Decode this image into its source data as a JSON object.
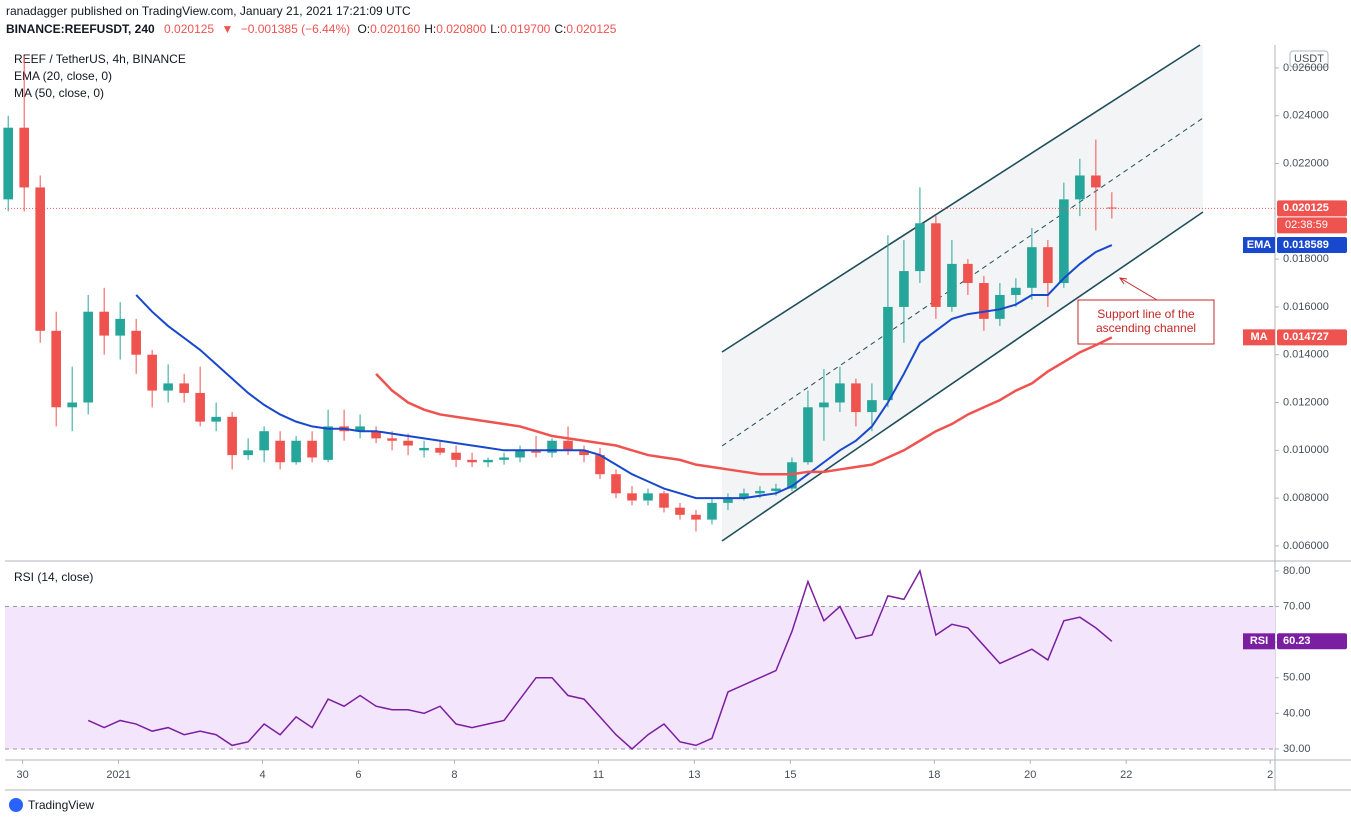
{
  "header": {
    "publisher": "ranadagger published on TradingView.com, January 21, 2021 17:21:09 UTC",
    "symbol": "BINANCE:REEFUSDT, 240",
    "last": "0.020125",
    "arrow": "▼",
    "change": "−0.001385 (−6.44%)",
    "ohlc": [
      {
        "label": "O:",
        "value": "0.020160"
      },
      {
        "label": "H:",
        "value": "0.020800"
      },
      {
        "label": "L:",
        "value": "0.019700"
      },
      {
        "label": "C:",
        "value": "0.020125"
      }
    ],
    "currency": "USDT",
    "timer": "02:38:59",
    "brand": "TradingView"
  },
  "chart_data": [
    {
      "type": "candlestick",
      "title": "REEF / TetherUS, 4h, BINANCE",
      "up_color": "#26a69a",
      "down_color": "#ef5350",
      "open": [
        0.0205,
        0.0235,
        0.021,
        0.015,
        0.0118,
        0.012,
        0.0158,
        0.0148,
        0.015,
        0.014,
        0.0125,
        0.0128,
        0.0124,
        0.0112,
        0.0114,
        0.0098,
        0.01,
        0.0104,
        0.0095,
        0.0104,
        0.0096,
        0.011,
        0.0108,
        0.0108,
        0.0105,
        0.0104,
        0.01,
        0.0101,
        0.0099,
        0.0096,
        0.0095,
        0.0096,
        0.0097,
        0.01,
        0.0099,
        0.0104,
        0.01,
        0.0098,
        0.009,
        0.0082,
        0.0079,
        0.0082,
        0.0076,
        0.0073,
        0.0071,
        0.0078,
        0.008,
        0.0082,
        0.0083,
        0.0084,
        0.0095,
        0.0118,
        0.012,
        0.0128,
        0.0116,
        0.0121,
        0.016,
        0.0175,
        0.0195,
        0.016,
        0.0178,
        0.017,
        0.0155,
        0.0165,
        0.0168,
        0.0185,
        0.017,
        0.0205,
        0.0215,
        0.02016
      ],
      "high": [
        0.024,
        0.0265,
        0.0215,
        0.0158,
        0.0135,
        0.0165,
        0.0168,
        0.0162,
        0.0155,
        0.0142,
        0.0136,
        0.0132,
        0.0135,
        0.012,
        0.0116,
        0.0105,
        0.011,
        0.0108,
        0.0106,
        0.0108,
        0.0117,
        0.0117,
        0.0115,
        0.011,
        0.0108,
        0.0107,
        0.0104,
        0.0104,
        0.0102,
        0.0099,
        0.0097,
        0.0099,
        0.0102,
        0.0106,
        0.0105,
        0.011,
        0.0102,
        0.0101,
        0.0092,
        0.0085,
        0.0084,
        0.0083,
        0.0078,
        0.0075,
        0.008,
        0.0082,
        0.0084,
        0.0085,
        0.0086,
        0.0097,
        0.0125,
        0.0134,
        0.0135,
        0.013,
        0.0128,
        0.019,
        0.0188,
        0.021,
        0.0198,
        0.0188,
        0.018,
        0.0173,
        0.017,
        0.0172,
        0.0193,
        0.0188,
        0.0212,
        0.0222,
        0.023,
        0.0208
      ],
      "low": [
        0.02,
        0.02,
        0.0145,
        0.011,
        0.0108,
        0.0115,
        0.014,
        0.0138,
        0.0132,
        0.0118,
        0.012,
        0.012,
        0.011,
        0.0108,
        0.0092,
        0.0096,
        0.0095,
        0.0092,
        0.0094,
        0.0095,
        0.0095,
        0.0104,
        0.0105,
        0.0103,
        0.01,
        0.0098,
        0.0097,
        0.0098,
        0.0093,
        0.0093,
        0.0093,
        0.0094,
        0.0095,
        0.0097,
        0.0097,
        0.0098,
        0.0095,
        0.0088,
        0.008,
        0.0077,
        0.0077,
        0.0074,
        0.0071,
        0.0066,
        0.0069,
        0.0075,
        0.0079,
        0.008,
        0.0081,
        0.0083,
        0.0094,
        0.0104,
        0.0116,
        0.011,
        0.0108,
        0.0118,
        0.0145,
        0.017,
        0.0155,
        0.0158,
        0.0165,
        0.015,
        0.0152,
        0.016,
        0.0163,
        0.016,
        0.0168,
        0.0198,
        0.0192,
        0.0197
      ],
      "close": [
        0.0235,
        0.021,
        0.015,
        0.0118,
        0.012,
        0.0158,
        0.0148,
        0.0155,
        0.014,
        0.0125,
        0.0128,
        0.0124,
        0.0112,
        0.0114,
        0.0098,
        0.01,
        0.0108,
        0.0095,
        0.0104,
        0.0097,
        0.011,
        0.0108,
        0.011,
        0.0105,
        0.0104,
        0.0102,
        0.0101,
        0.0099,
        0.0096,
        0.0095,
        0.0096,
        0.0097,
        0.01,
        0.0099,
        0.0104,
        0.01,
        0.0098,
        0.009,
        0.0082,
        0.0079,
        0.0082,
        0.0076,
        0.0073,
        0.0071,
        0.0078,
        0.008,
        0.0082,
        0.0083,
        0.0084,
        0.0095,
        0.0118,
        0.012,
        0.0128,
        0.0116,
        0.0121,
        0.016,
        0.0175,
        0.0195,
        0.016,
        0.0178,
        0.017,
        0.0155,
        0.0165,
        0.0168,
        0.0185,
        0.017,
        0.0205,
        0.0215,
        0.021,
        0.020125
      ],
      "series": [
        {
          "name": "EMA (20, close, 0)",
          "badge": "EMA",
          "color": "#1848cc",
          "values": [
            null,
            null,
            null,
            null,
            null,
            null,
            null,
            null,
            0.0165,
            0.0158,
            0.0152,
            0.0147,
            0.0142,
            0.0136,
            0.013,
            0.0124,
            0.0119,
            0.0115,
            0.0112,
            0.011,
            0.0109,
            0.0109,
            0.0108,
            0.0108,
            0.0107,
            0.0106,
            0.0105,
            0.0104,
            0.0103,
            0.0102,
            0.0101,
            0.01,
            0.01,
            0.01,
            0.01,
            0.01,
            0.01,
            0.0098,
            0.0094,
            0.009,
            0.0087,
            0.0084,
            0.0082,
            0.008,
            0.008,
            0.008,
            0.008,
            0.0081,
            0.0082,
            0.0085,
            0.009,
            0.0095,
            0.01,
            0.0104,
            0.011,
            0.012,
            0.0132,
            0.0145,
            0.015,
            0.0155,
            0.0157,
            0.0158,
            0.0159,
            0.0161,
            0.0165,
            0.0165,
            0.0172,
            0.0178,
            0.0183,
            0.018589
          ]
        },
        {
          "name": "MA (50, close, 0)",
          "badge": "MA",
          "color": "#ef5350",
          "values": [
            null,
            null,
            null,
            null,
            null,
            null,
            null,
            null,
            null,
            null,
            null,
            null,
            null,
            null,
            null,
            null,
            null,
            null,
            null,
            null,
            null,
            null,
            null,
            0.0132,
            0.0125,
            0.012,
            0.0117,
            0.0115,
            0.0114,
            0.0113,
            0.0112,
            0.0111,
            0.011,
            0.0108,
            0.0106,
            0.0105,
            0.0104,
            0.0103,
            0.0102,
            0.01,
            0.0098,
            0.0097,
            0.0096,
            0.0094,
            0.0093,
            0.0092,
            0.0091,
            0.009,
            0.009,
            0.009,
            0.0091,
            0.0091,
            0.0092,
            0.0093,
            0.0094,
            0.0097,
            0.01,
            0.0104,
            0.0108,
            0.0111,
            0.0115,
            0.0118,
            0.0121,
            0.0125,
            0.0128,
            0.0133,
            0.0137,
            0.0141,
            0.0144,
            0.014727
          ]
        }
      ],
      "ylim": [
        0.00541,
        0.02696
      ],
      "yticks": [
        {
          "value": 0.006,
          "label": "0.006000"
        },
        {
          "value": 0.008,
          "label": "0.008000"
        },
        {
          "value": 0.01,
          "label": "0.010000"
        },
        {
          "value": 0.012,
          "label": "0.012000"
        },
        {
          "value": 0.014,
          "label": "0.014000"
        },
        {
          "value": 0.016,
          "label": "0.016000"
        },
        {
          "value": 0.018,
          "label": "0.018000"
        },
        {
          "value": 0.022,
          "label": "0.022000"
        },
        {
          "value": 0.024,
          "label": "0.024000"
        },
        {
          "value": 0.026,
          "label": "0.026000"
        }
      ],
      "xlim": [
        -0.2,
        79.2
      ],
      "xticks": [
        {
          "value": 0.9,
          "label": "30"
        },
        {
          "value": 6.9,
          "label": "2021"
        },
        {
          "value": 15.9,
          "label": "4"
        },
        {
          "value": 21.9,
          "label": "6"
        },
        {
          "value": 27.9,
          "label": "8"
        },
        {
          "value": 36.9,
          "label": "11"
        },
        {
          "value": 42.9,
          "label": "13"
        },
        {
          "value": 48.9,
          "label": "15"
        },
        {
          "value": 57.9,
          "label": "18"
        },
        {
          "value": 63.9,
          "label": "20"
        },
        {
          "value": 69.9,
          "label": "22"
        },
        {
          "value": 78.9,
          "label": "2"
        }
      ],
      "annotation": [
        "Support line of the",
        "ascending channel"
      ]
    },
    {
      "type": "line",
      "title": "RSI (14, close)",
      "series": [
        {
          "name": "RSI",
          "color": "#7b1fa2",
          "values": [
            null,
            null,
            null,
            null,
            null,
            38,
            36,
            38,
            37,
            35,
            36,
            34,
            35,
            34,
            31,
            32,
            37,
            34,
            39,
            36,
            44,
            42,
            45,
            42,
            41,
            41,
            40,
            42,
            37,
            36,
            37,
            38,
            44,
            50,
            50,
            45,
            44,
            39,
            34,
            30,
            34,
            37,
            32,
            31,
            33,
            46,
            48,
            50,
            52,
            63,
            77,
            66,
            70,
            61,
            62,
            73,
            72,
            80,
            62,
            65,
            64,
            59,
            54,
            56,
            58,
            55,
            66,
            67,
            64,
            60.23
          ]
        }
      ],
      "band": [
        30,
        70
      ],
      "band_color": "#f3e5fc",
      "ylim": [
        26.9,
        82.5
      ],
      "yticks": [
        {
          "value": 30,
          "label": "30.00"
        },
        {
          "value": 40,
          "label": "40.00"
        },
        {
          "value": 50,
          "label": "50.00"
        },
        {
          "value": 60,
          "label": "60.00"
        },
        {
          "value": 70,
          "label": "70.00"
        },
        {
          "value": 80,
          "label": "80.00"
        }
      ]
    }
  ]
}
